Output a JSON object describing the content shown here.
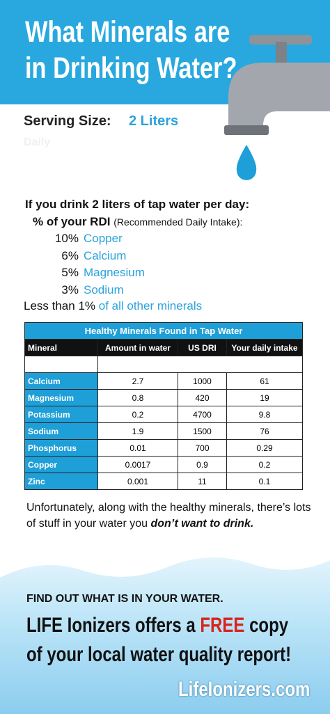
{
  "header": {
    "title": [
      "What Minerals are",
      "in Drinking Water?"
    ]
  },
  "serving": {
    "label": "Serving Size:",
    "value": "2 Liters",
    "faint": "Daily"
  },
  "rdi": {
    "intro": "If you drink 2 liters of tap water per day:",
    "label": "% of your RDI",
    "note": "(Recommended Daily Intake):",
    "items": [
      [
        "10%",
        "Copper"
      ],
      [
        "6%",
        "Calcium"
      ],
      [
        "5%",
        "Magnesium"
      ],
      [
        "3%",
        "Sodium"
      ]
    ],
    "other": [
      "Less than 1%",
      "of all other minerals"
    ]
  },
  "table": {
    "title": "Healthy Minerals Found in Tap Water",
    "headers": [
      "Mineral",
      "Amount in water",
      "US DRI",
      "Your daily intake"
    ],
    "rows": [
      [
        "Calcium",
        2.7,
        1000,
        61
      ],
      [
        "Magnesium",
        0.8,
        420,
        19
      ],
      [
        "Potassium",
        0.2,
        4700,
        9.8
      ],
      [
        "Sodium",
        1.9,
        1500,
        76
      ],
      [
        "Phosphorus",
        0.01,
        700,
        0.29
      ],
      [
        "Copper",
        0.0017,
        0.9,
        0.2
      ],
      [
        "Zinc",
        0.001,
        11,
        0.1
      ]
    ]
  },
  "closing": [
    "Unfortunately, along with the healthy minerals, there’s lots of stuff in your water you ",
    "don’t want to drink."
  ],
  "footer": {
    "heading": "FIND OUT WHAT IS IN YOUR WATER.",
    "line1": [
      "LIFE Ionizers offers a ",
      "FREE",
      " copy"
    ],
    "line2": "of your local water quality report!",
    "url": "LifeIonizers.com"
  }
}
